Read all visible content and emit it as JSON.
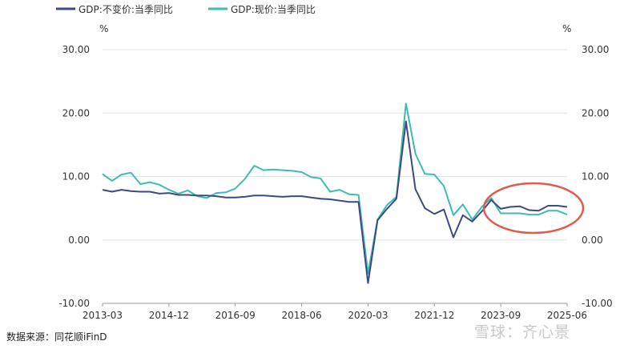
{
  "chart_data": {
    "type": "line",
    "unit_left": "%",
    "unit_right": "%",
    "y_ticks": [
      "30.00",
      "20.00",
      "10.00",
      "0.00",
      "-10.00"
    ],
    "y_ticks_right": [
      "30.00",
      "20.00",
      "10.00",
      "0.00",
      "-10.00"
    ],
    "ylim": [
      -10,
      30
    ],
    "x_tick_labels": [
      "2013-03",
      "2014-12",
      "2016-09",
      "2018-06",
      "2020-03",
      "2021-12",
      "2023-09",
      "2025-06"
    ],
    "x": [
      "2013-03",
      "2013-06",
      "2013-09",
      "2013-12",
      "2014-03",
      "2014-06",
      "2014-09",
      "2014-12",
      "2015-03",
      "2015-06",
      "2015-09",
      "2015-12",
      "2016-03",
      "2016-06",
      "2016-09",
      "2016-12",
      "2017-03",
      "2017-06",
      "2017-09",
      "2017-12",
      "2018-03",
      "2018-06",
      "2018-09",
      "2018-12",
      "2019-03",
      "2019-06",
      "2019-09",
      "2019-12",
      "2020-03",
      "2020-06",
      "2020-09",
      "2020-12",
      "2021-03",
      "2021-06",
      "2021-09",
      "2021-12",
      "2022-03",
      "2022-06",
      "2022-09",
      "2022-12",
      "2023-03",
      "2023-06",
      "2023-09",
      "2023-12",
      "2024-03",
      "2024-06",
      "2024-09",
      "2024-12",
      "2025-03",
      "2025-06"
    ],
    "series": [
      {
        "name": "GDP:不变价:当季同比",
        "color": "#3f4a82",
        "values": [
          7.9,
          7.6,
          7.9,
          7.7,
          7.6,
          7.6,
          7.3,
          7.4,
          7.1,
          7.1,
          7.0,
          7.0,
          6.9,
          6.7,
          6.7,
          6.8,
          7.0,
          7.0,
          6.9,
          6.8,
          6.9,
          6.9,
          6.7,
          6.5,
          6.4,
          6.2,
          6.0,
          6.0,
          -6.8,
          3.1,
          4.9,
          6.5,
          18.7,
          8.0,
          5.0,
          4.1,
          4.8,
          0.4,
          3.9,
          2.9,
          4.5,
          6.3,
          4.9,
          5.2,
          5.3,
          4.7,
          4.6,
          5.4,
          5.4,
          5.2
        ]
      },
      {
        "name": "GDP:现价:当季同比",
        "color": "#3dbcb0",
        "values": [
          10.4,
          9.3,
          10.3,
          10.6,
          8.8,
          9.1,
          8.7,
          7.9,
          7.3,
          7.8,
          6.9,
          6.6,
          7.4,
          7.5,
          8.1,
          9.6,
          11.7,
          11.0,
          11.1,
          11.0,
          10.9,
          10.7,
          9.9,
          9.7,
          7.6,
          7.9,
          7.2,
          7.1,
          -5.3,
          3.2,
          5.5,
          6.8,
          21.5,
          13.6,
          10.4,
          10.3,
          8.5,
          3.9,
          5.6,
          3.2,
          5.2,
          6.6,
          4.2,
          4.2,
          4.2,
          4.0,
          4.0,
          4.6,
          4.6,
          4.0
        ]
      }
    ],
    "grid": true,
    "legend_position": "top-left"
  },
  "source_text": "数据来源：同花顺iFinD",
  "watermark_text": "雪球：齐心景",
  "annotation": {
    "shape": "ellipse",
    "color": "#e05a4e",
    "target_range": [
      "2023-06",
      "2025-06"
    ]
  }
}
